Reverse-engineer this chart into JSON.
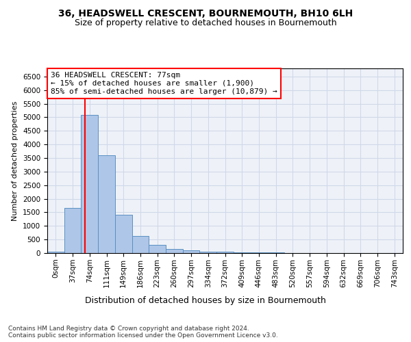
{
  "title1": "36, HEADSWELL CRESCENT, BOURNEMOUTH, BH10 6LH",
  "title2": "Size of property relative to detached houses in Bournemouth",
  "xlabel": "Distribution of detached houses by size in Bournemouth",
  "ylabel": "Number of detached properties",
  "bin_labels": [
    "0sqm",
    "37sqm",
    "74sqm",
    "111sqm",
    "149sqm",
    "186sqm",
    "223sqm",
    "260sqm",
    "297sqm",
    "334sqm",
    "372sqm",
    "409sqm",
    "446sqm",
    "483sqm",
    "520sqm",
    "557sqm",
    "594sqm",
    "632sqm",
    "669sqm",
    "706sqm",
    "743sqm"
  ],
  "bar_heights": [
    55,
    1650,
    5100,
    3600,
    1400,
    620,
    300,
    140,
    100,
    60,
    50,
    35,
    20,
    15,
    10,
    8,
    5,
    5,
    4,
    3,
    3
  ],
  "bar_color": "#aec6e8",
  "bar_edge_color": "#5a8fc2",
  "red_line_color": "red",
  "annotation_text": "36 HEADSWELL CRESCENT: 77sqm\n← 15% of detached houses are smaller (1,900)\n85% of semi-detached houses are larger (10,879) →",
  "annotation_box_color": "white",
  "annotation_box_edge_color": "red",
  "ylim": [
    0,
    6800
  ],
  "yticks": [
    0,
    500,
    1000,
    1500,
    2000,
    2500,
    3000,
    3500,
    4000,
    4500,
    5000,
    5500,
    6000,
    6500
  ],
  "grid_color": "#d0d8e8",
  "background_color": "#eef2f8",
  "footer_text": "Contains HM Land Registry data © Crown copyright and database right 2024.\nContains public sector information licensed under the Open Government Licence v3.0.",
  "title1_fontsize": 10,
  "title2_fontsize": 9,
  "xlabel_fontsize": 9,
  "ylabel_fontsize": 8,
  "tick_fontsize": 7.5,
  "annotation_fontsize": 8,
  "footer_fontsize": 6.5
}
